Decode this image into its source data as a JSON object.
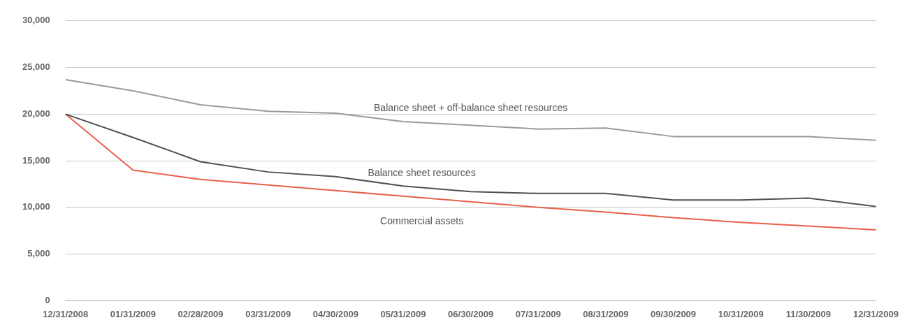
{
  "chart_data": {
    "type": "line",
    "categories": [
      "12/31/2008",
      "01/31/2009",
      "02/28/2009",
      "03/31/2009",
      "04/30/2009",
      "05/31/2009",
      "06/30/2009",
      "07/31/2009",
      "08/31/2009",
      "09/30/2009",
      "10/31/2009",
      "11/30/2009",
      "12/31/2009"
    ],
    "series": [
      {
        "name": "Balance sheet + off-balance sheet resources",
        "color": "#999a9c",
        "values": [
          23700,
          22500,
          21000,
          20300,
          20100,
          19200,
          18800,
          18400,
          18500,
          17600,
          17600,
          17600,
          17200
        ]
      },
      {
        "name": "Balance sheet resources",
        "color": "#505153",
        "values": [
          20000,
          17500,
          14900,
          13800,
          13300,
          12300,
          11700,
          11500,
          11500,
          10800,
          10800,
          11000,
          10100
        ]
      },
      {
        "name": "Commercial assets",
        "color": "#e8604c",
        "values": [
          20000,
          14000,
          13000,
          12400,
          11800,
          11200,
          10600,
          10000,
          9500,
          8900,
          8400,
          8000,
          7600
        ]
      }
    ],
    "ylim": [
      0,
      30000
    ],
    "yticks": [
      0,
      {
        "value": 5000,
        "label": "5,000"
      },
      {
        "value": 10000,
        "label": "10,000"
      },
      {
        "value": 15000,
        "label": "15,000"
      },
      {
        "value": 20000,
        "label": "20,000"
      },
      {
        "value": 25000,
        "label": "25,000"
      },
      {
        "value": 30000,
        "label": "30,000"
      }
    ],
    "grid": "y",
    "legend": false,
    "marker": "none",
    "line_style": "solid"
  }
}
